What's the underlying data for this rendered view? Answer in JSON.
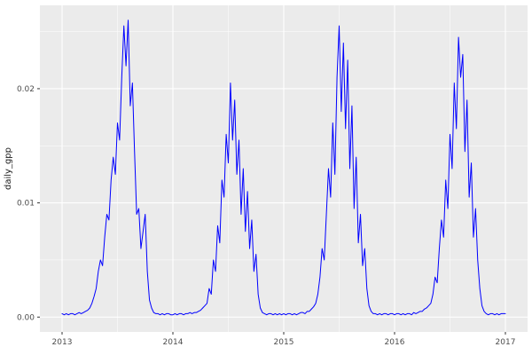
{
  "chart_data": {
    "type": "line",
    "title": "",
    "xlabel": "",
    "ylabel": "daily_gpp",
    "x_ticks": [
      2013,
      2014,
      2015,
      2016,
      2017
    ],
    "x_tick_labels": [
      "2013",
      "2014",
      "2015",
      "2016",
      "2017"
    ],
    "y_ticks": [
      0,
      0.01,
      0.02
    ],
    "y_tick_labels": [
      "0.00",
      "0.01",
      "0.02"
    ],
    "x_minor_ticks": [
      2013.5,
      2014.5,
      2015.5,
      2016.5
    ],
    "y_minor_ticks": [
      0.005,
      0.015,
      0.025
    ],
    "xlim": [
      2012.8,
      2017.2
    ],
    "ylim": [
      -0.0013,
      0.0273
    ],
    "grid": "on",
    "legend": "none",
    "panel_background": "#EBEBEB",
    "grid_color": "#FFFFFF",
    "tick_mark_color": "#333333",
    "tick_label_color": "#4D4D4D",
    "axis_title_color": "#1A1A1A",
    "line_color": "#0000FF",
    "series": [
      {
        "name": "daily_gpp",
        "x_start": 2013,
        "x_step_years": 0.019230769,
        "values": [
          0.0003,
          0.0002,
          0.0003,
          0.0002,
          0.0003,
          0.0003,
          0.0002,
          0.0003,
          0.0004,
          0.0003,
          0.0004,
          0.0005,
          0.0006,
          0.0008,
          0.0012,
          0.0018,
          0.0025,
          0.004,
          0.005,
          0.0045,
          0.007,
          0.009,
          0.0085,
          0.012,
          0.014,
          0.0125,
          0.017,
          0.0155,
          0.021,
          0.0255,
          0.022,
          0.026,
          0.0185,
          0.0205,
          0.0145,
          0.009,
          0.0095,
          0.006,
          0.0075,
          0.009,
          0.004,
          0.0015,
          0.0008,
          0.0004,
          0.0003,
          0.0003,
          0.0002,
          0.0003,
          0.0002,
          0.0003,
          0.0003,
          0.0002,
          0.0002,
          0.0003,
          0.0002,
          0.0003,
          0.0003,
          0.0002,
          0.0003,
          0.0003,
          0.0004,
          0.0003,
          0.0004,
          0.0004,
          0.0005,
          0.0006,
          0.0008,
          0.001,
          0.0012,
          0.0025,
          0.002,
          0.005,
          0.004,
          0.008,
          0.0065,
          0.012,
          0.0105,
          0.016,
          0.0135,
          0.0205,
          0.0155,
          0.019,
          0.0125,
          0.0155,
          0.009,
          0.013,
          0.0075,
          0.011,
          0.006,
          0.0085,
          0.004,
          0.0055,
          0.002,
          0.0008,
          0.0004,
          0.0003,
          0.0002,
          0.0003,
          0.0003,
          0.0002,
          0.0003,
          0.0002,
          0.0003,
          0.0002,
          0.0003,
          0.0002,
          0.0003,
          0.0003,
          0.0002,
          0.0003,
          0.0002,
          0.0003,
          0.0004,
          0.0004,
          0.0003,
          0.0005,
          0.0005,
          0.0007,
          0.0009,
          0.0012,
          0.002,
          0.0035,
          0.006,
          0.005,
          0.009,
          0.013,
          0.0105,
          0.017,
          0.0125,
          0.021,
          0.0255,
          0.018,
          0.024,
          0.0165,
          0.0225,
          0.013,
          0.0185,
          0.0095,
          0.014,
          0.0065,
          0.009,
          0.0045,
          0.006,
          0.0025,
          0.001,
          0.0005,
          0.0003,
          0.0003,
          0.0002,
          0.0003,
          0.0002,
          0.0003,
          0.0003,
          0.0002,
          0.0003,
          0.0003,
          0.0002,
          0.0003,
          0.0003,
          0.0002,
          0.0003,
          0.0002,
          0.0003,
          0.0003,
          0.0002,
          0.0004,
          0.0003,
          0.0004,
          0.0005,
          0.0005,
          0.0007,
          0.0008,
          0.001,
          0.0012,
          0.002,
          0.0035,
          0.003,
          0.006,
          0.0085,
          0.007,
          0.012,
          0.0095,
          0.016,
          0.013,
          0.0205,
          0.0165,
          0.0245,
          0.021,
          0.023,
          0.0145,
          0.019,
          0.0105,
          0.0135,
          0.007,
          0.0095,
          0.005,
          0.0025,
          0.001,
          0.0005,
          0.0003,
          0.0002,
          0.0003,
          0.0003,
          0.0002,
          0.0003,
          0.0002,
          0.0003,
          0.0003,
          0.0003
        ]
      }
    ]
  }
}
